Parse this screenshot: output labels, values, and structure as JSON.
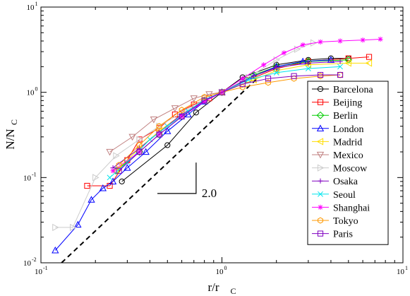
{
  "chart_data": {
    "type": "line",
    "xscale": "log",
    "yscale": "log",
    "xlim": [
      0.1,
      10
    ],
    "ylim": [
      0.01,
      10
    ],
    "xlabel": {
      "main": "r/r",
      "sub": "C"
    },
    "ylabel": {
      "main": "N/N",
      "sub": "C"
    },
    "x_ticks": [
      {
        "base": "10",
        "exp": "-1"
      },
      {
        "base": "10",
        "exp": "0"
      },
      {
        "base": "10",
        "exp": "1"
      }
    ],
    "y_ticks": [
      {
        "base": "10",
        "exp": "-2"
      },
      {
        "base": "10",
        "exp": "-1"
      },
      {
        "base": "10",
        "exp": "0"
      },
      {
        "base": "10",
        "exp": "1"
      }
    ],
    "legend_position": "right",
    "reference_line": {
      "slope": 2.0,
      "label": "2.0",
      "style": "dashed",
      "color": "#000000"
    },
    "slope_marker_label": "2.0",
    "series": [
      {
        "name": "Barcelona",
        "marker": "circle",
        "color": "#000000",
        "x": [
          0.28,
          0.5,
          0.72,
          1.0,
          1.3,
          2.0,
          3.0,
          4.0,
          5.0
        ],
        "y": [
          0.09,
          0.24,
          0.58,
          1.0,
          1.5,
          2.1,
          2.4,
          2.5,
          2.5
        ]
      },
      {
        "name": "Beijing",
        "marker": "square",
        "color": "#ff0000",
        "x": [
          0.18,
          0.24,
          0.3,
          0.35,
          0.45,
          0.55,
          0.7,
          0.85,
          1.0,
          1.4,
          2.0,
          3.0,
          5.0,
          6.5
        ],
        "y": [
          0.08,
          0.08,
          0.16,
          0.28,
          0.38,
          0.55,
          0.72,
          0.85,
          1.0,
          1.4,
          1.9,
          2.3,
          2.5,
          2.6
        ]
      },
      {
        "name": "Berlin",
        "marker": "diamond",
        "color": "#00cc00",
        "x": [
          0.26,
          0.35,
          0.45,
          0.6,
          0.8,
          1.0,
          1.5,
          2.0,
          3.0,
          5.0
        ],
        "y": [
          0.12,
          0.2,
          0.32,
          0.52,
          0.8,
          1.0,
          1.6,
          2.0,
          2.3,
          2.4
        ]
      },
      {
        "name": "London",
        "marker": "triangle-up",
        "color": "#0000ff",
        "x": [
          0.12,
          0.16,
          0.19,
          0.22,
          0.25,
          0.3,
          0.38,
          0.5,
          0.65,
          0.8,
          1.0,
          1.5,
          2.0,
          2.8,
          4.0
        ],
        "y": [
          0.014,
          0.028,
          0.055,
          0.075,
          0.09,
          0.13,
          0.2,
          0.35,
          0.55,
          0.78,
          1.0,
          1.55,
          2.0,
          2.3,
          2.4
        ]
      },
      {
        "name": "Madrid",
        "marker": "triangle-left",
        "color": "#ffdd00",
        "x": [
          0.26,
          0.35,
          0.45,
          0.6,
          0.8,
          1.0,
          1.5,
          2.0,
          3.0,
          5.0,
          6.5
        ],
        "y": [
          0.12,
          0.22,
          0.35,
          0.55,
          0.8,
          1.0,
          1.4,
          1.8,
          2.1,
          2.2,
          2.2
        ]
      },
      {
        "name": "Mexico",
        "marker": "triangle-down",
        "color": "#c08080",
        "x": [
          0.24,
          0.32,
          0.42,
          0.55,
          0.7,
          0.85,
          1.0
        ],
        "y": [
          0.2,
          0.3,
          0.48,
          0.65,
          0.85,
          0.95,
          1.0
        ]
      },
      {
        "name": "Moscow",
        "marker": "triangle-right",
        "color": "#cccccc",
        "x": [
          0.12,
          0.15,
          0.2,
          0.26,
          0.35,
          0.45,
          0.6,
          0.8,
          1.0,
          1.4,
          2.0,
          2.6,
          3.2
        ],
        "y": [
          0.026,
          0.026,
          0.1,
          0.18,
          0.28,
          0.4,
          0.58,
          0.82,
          1.0,
          1.5,
          2.4,
          3.2,
          3.8
        ]
      },
      {
        "name": "Osaka",
        "marker": "plus",
        "color": "#8000c0",
        "x": [
          0.25,
          0.35,
          0.45,
          0.6,
          0.8,
          1.0,
          1.5,
          2.0,
          3.0,
          4.5
        ],
        "y": [
          0.13,
          0.22,
          0.34,
          0.55,
          0.8,
          1.0,
          1.55,
          1.95,
          2.2,
          2.3
        ]
      },
      {
        "name": "Seoul",
        "marker": "cross",
        "color": "#00e5ee",
        "x": [
          0.24,
          0.3,
          0.4,
          0.5,
          0.65,
          0.8,
          1.0,
          1.4,
          2.0,
          3.0,
          4.5
        ],
        "y": [
          0.1,
          0.15,
          0.28,
          0.4,
          0.6,
          0.82,
          1.0,
          1.4,
          1.7,
          1.9,
          2.0
        ]
      },
      {
        "name": "Shanghai",
        "marker": "star",
        "color": "#ff00ff",
        "x": [
          0.25,
          0.35,
          0.45,
          0.6,
          0.8,
          1.0,
          1.3,
          1.7,
          2.2,
          2.8,
          3.5,
          4.5,
          6.0,
          7.5
        ],
        "y": [
          0.12,
          0.2,
          0.32,
          0.52,
          0.78,
          1.0,
          1.45,
          2.1,
          2.9,
          3.6,
          3.9,
          4.0,
          4.1,
          4.2
        ]
      },
      {
        "name": "Tokyo",
        "marker": "hexagon",
        "color": "#ff9900",
        "x": [
          0.27,
          0.35,
          0.45,
          0.6,
          0.8,
          1.0,
          1.3,
          1.8,
          2.5,
          3.5,
          4.5
        ],
        "y": [
          0.14,
          0.24,
          0.4,
          0.62,
          0.88,
          1.0,
          1.15,
          1.3,
          1.45,
          1.55,
          1.6
        ]
      },
      {
        "name": "Paris",
        "marker": "square",
        "color": "#8000c0",
        "x": [
          0.27,
          0.35,
          0.45,
          0.6,
          0.8,
          1.0,
          1.3,
          1.8,
          2.5,
          3.5,
          4.5
        ],
        "y": [
          0.12,
          0.2,
          0.32,
          0.52,
          0.8,
          1.0,
          1.25,
          1.45,
          1.55,
          1.6,
          1.6
        ]
      }
    ]
  }
}
